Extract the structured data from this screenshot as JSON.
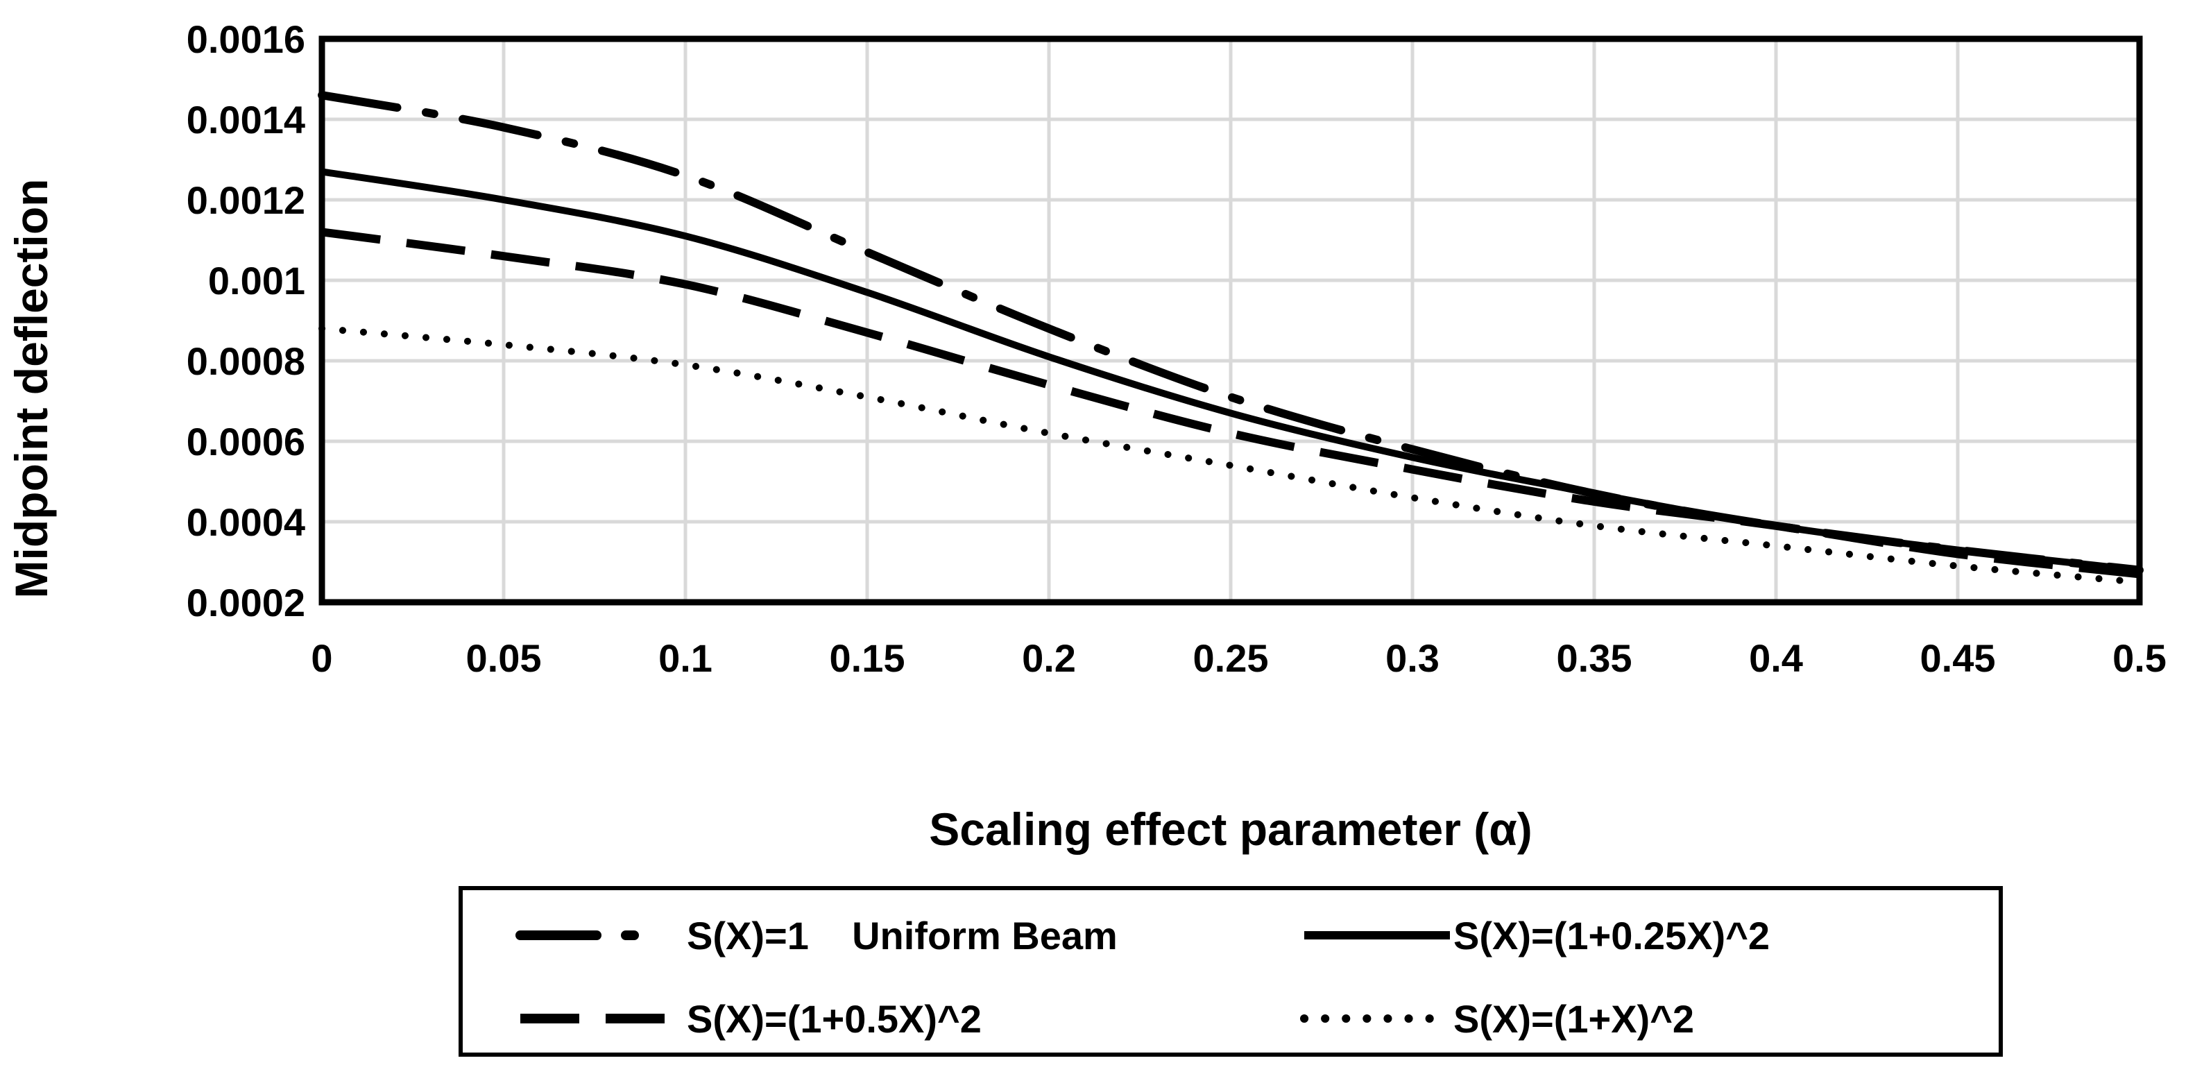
{
  "chart_data": {
    "type": "line",
    "title": "",
    "xlabel": "Scaling effect parameter  (α)",
    "ylabel": "Midpoint deflection",
    "xlim": [
      0,
      0.5
    ],
    "ylim": [
      0.0002,
      0.0016
    ],
    "x_ticks": [
      "0",
      "0.05",
      "0.1",
      "0.15",
      "0.2",
      "0.25",
      "0.3",
      "0.35",
      "0.4",
      "0.45",
      "0.5"
    ],
    "y_ticks": [
      "0.0002",
      "0.0004",
      "0.0006",
      "0.0008",
      "0.001",
      "0.0012",
      "0.0014",
      "0.0016"
    ],
    "grid": true,
    "legend_position": "bottom",
    "x": [
      0,
      0.05,
      0.1,
      0.15,
      0.2,
      0.25,
      0.3,
      0.35,
      0.4,
      0.45,
      0.5
    ],
    "series": [
      {
        "name": "S(X)=1    Uniform Beam",
        "style": "dash-dot",
        "values": [
          0.00146,
          0.00138,
          0.00126,
          0.00107,
          0.00088,
          0.00071,
          0.00058,
          0.00047,
          0.00039,
          0.00033,
          0.00028
        ]
      },
      {
        "name": "S(X)=(1+0.25X)^2",
        "style": "solid",
        "values": [
          0.00127,
          0.0012,
          0.00111,
          0.00097,
          0.00081,
          0.00067,
          0.00056,
          0.00047,
          0.00039,
          0.00033,
          0.00028
        ]
      },
      {
        "name": "S(X)=(1+0.5X)^2",
        "style": "dash",
        "values": [
          0.00112,
          0.00106,
          0.00099,
          0.00087,
          0.00074,
          0.00062,
          0.00053,
          0.00045,
          0.00039,
          0.00032,
          0.00027
        ]
      },
      {
        "name": "S(X)=(1+X)^2",
        "style": "dotted",
        "values": [
          0.00088,
          0.00084,
          0.00079,
          0.00071,
          0.00062,
          0.00054,
          0.00046,
          0.00039,
          0.00034,
          0.00029,
          0.00025
        ]
      }
    ],
    "colors": {
      "line": "#000000",
      "grid": "#d9d9d9",
      "background": "#ffffff"
    }
  }
}
